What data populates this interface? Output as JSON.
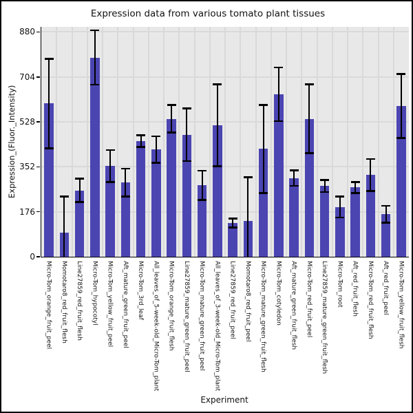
{
  "figure": {
    "background_color": "#ffffff",
    "border_color": "#000000"
  },
  "chart_data": {
    "type": "bar",
    "title": "Expression data from various tomato plant tissues",
    "xlabel": "Experiment",
    "ylabel": "Expression_(Fluor._Intensity)",
    "ylim": [
      0,
      900
    ],
    "yticks": [
      0,
      176,
      352,
      528,
      704,
      880
    ],
    "grid": true,
    "legend": "none",
    "plot_bg_color": "#e8e8e8",
    "grid_color": "#d9d9d9",
    "bar_color": "#4b45b2",
    "error_bar_color": "#000000",
    "categories": [
      "Micro-Tom_orange_fruit_peel",
      "Momotaro8_red_fruit_flesh",
      "Line27859_red_fruit_flesh",
      "Micro-Tom_hypocotyl",
      "Micro-Tom_yellow_fruit_peel",
      "Aft_mature_green_fruit_peel",
      "Micro-Tom_3rd_leaf",
      "All_leaves_of_5-week-old_Micro-Tom_plant",
      "Micro-Tom_orange_fruit_flesh",
      "Line27859_mature_green_fruit_peel",
      "Micro-Tom_mature_green_fruit_peel",
      "All_leaves_of_3-week-old_Micro-Tom_plant",
      "Line27859_red_fruit_peel",
      "Momotaro8_red_fruit_peel",
      "Micro-Tom_mature_green_fruit_flesh",
      "Micro-Tom_cotyledon",
      "Aft_mature_green_fruit_flesh",
      "Micro-Tom_red_fruit_peel",
      "Line27859_mature_green_fruit_flesh",
      "Micro-Tom_root",
      "Aft_red_fruit_flesh",
      "Micro-Tom_red_fruit_flesh",
      "Aft_red_fruit_peel",
      "Micro-Tom_yellow_fruit_flesh"
    ],
    "series": [
      {
        "name": "Expression_(Fluor._Intensity)",
        "values": [
          600,
          95,
          260,
          780,
          355,
          290,
          452,
          420,
          540,
          478,
          280,
          515,
          132,
          140,
          422,
          636,
          308,
          540,
          277,
          195,
          271,
          320,
          166,
          590
        ],
        "errors": [
          175,
          140,
          46,
          106,
          63,
          55,
          23,
          52,
          54,
          103,
          57,
          160,
          18,
          172,
          172,
          105,
          30,
          135,
          24,
          41,
          21,
          63,
          33,
          125
        ]
      }
    ]
  }
}
